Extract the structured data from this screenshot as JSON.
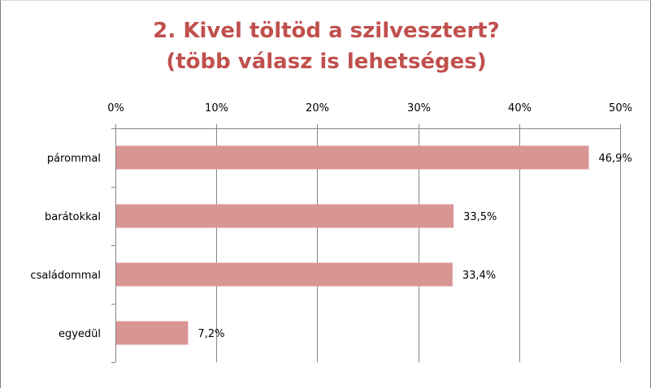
{
  "chart_data": {
    "type": "bar",
    "orientation": "horizontal",
    "title_lines": [
      "2. Kivel töltöd a szilvesztert?",
      "(több válasz is lehetséges)"
    ],
    "categories": [
      "párommal",
      "barátokkal",
      "családommal",
      "egyedül"
    ],
    "values": [
      46.9,
      33.5,
      33.4,
      7.2
    ],
    "data_labels": [
      "46,9%",
      "33,5%",
      "33,4%",
      "7,2%"
    ],
    "x_ticks": [
      "0%",
      "10%",
      "20%",
      "30%",
      "40%",
      "50%"
    ],
    "xlim": [
      0,
      50
    ],
    "x_axis_position": "top",
    "grid": true,
    "legend": "none",
    "bar_color": "#d99594",
    "title_color": "#c0504d",
    "gridline_color": "#868686"
  }
}
